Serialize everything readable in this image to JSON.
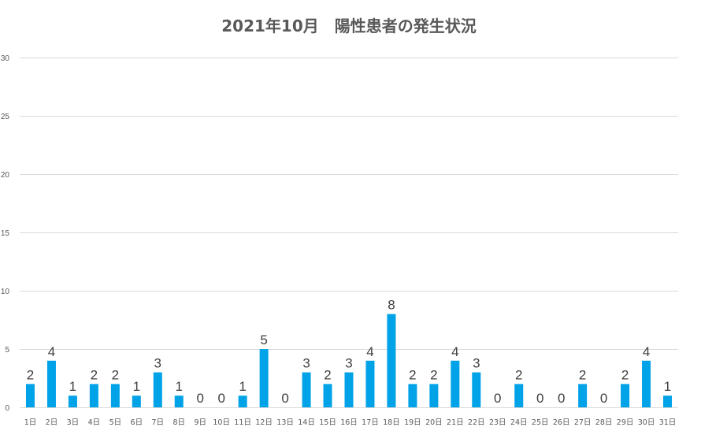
{
  "chart_data": {
    "type": "bar",
    "title": "2021年10月　陽性患者の発生状況",
    "xlabel": "",
    "ylabel": "",
    "ylim": [
      0,
      30
    ],
    "yticks": [
      0,
      5,
      10,
      15,
      20,
      25,
      30
    ],
    "grid": true,
    "legend": "none",
    "bar_color": "#00a2e8",
    "data_labels": true,
    "categories": [
      "1日",
      "2日",
      "3日",
      "4日",
      "5日",
      "6日",
      "7日",
      "8日",
      "9日",
      "10日",
      "11日",
      "12日",
      "13日",
      "14日",
      "15日",
      "16日",
      "17日",
      "18日",
      "19日",
      "20日",
      "21日",
      "22日",
      "23日",
      "24日",
      "25日",
      "26日",
      "27日",
      "28日",
      "29日",
      "30日",
      "31日"
    ],
    "values": [
      2,
      4,
      1,
      2,
      2,
      1,
      3,
      1,
      0,
      0,
      1,
      5,
      0,
      3,
      2,
      3,
      4,
      8,
      2,
      2,
      4,
      3,
      0,
      2,
      0,
      0,
      2,
      0,
      2,
      4,
      1
    ]
  }
}
